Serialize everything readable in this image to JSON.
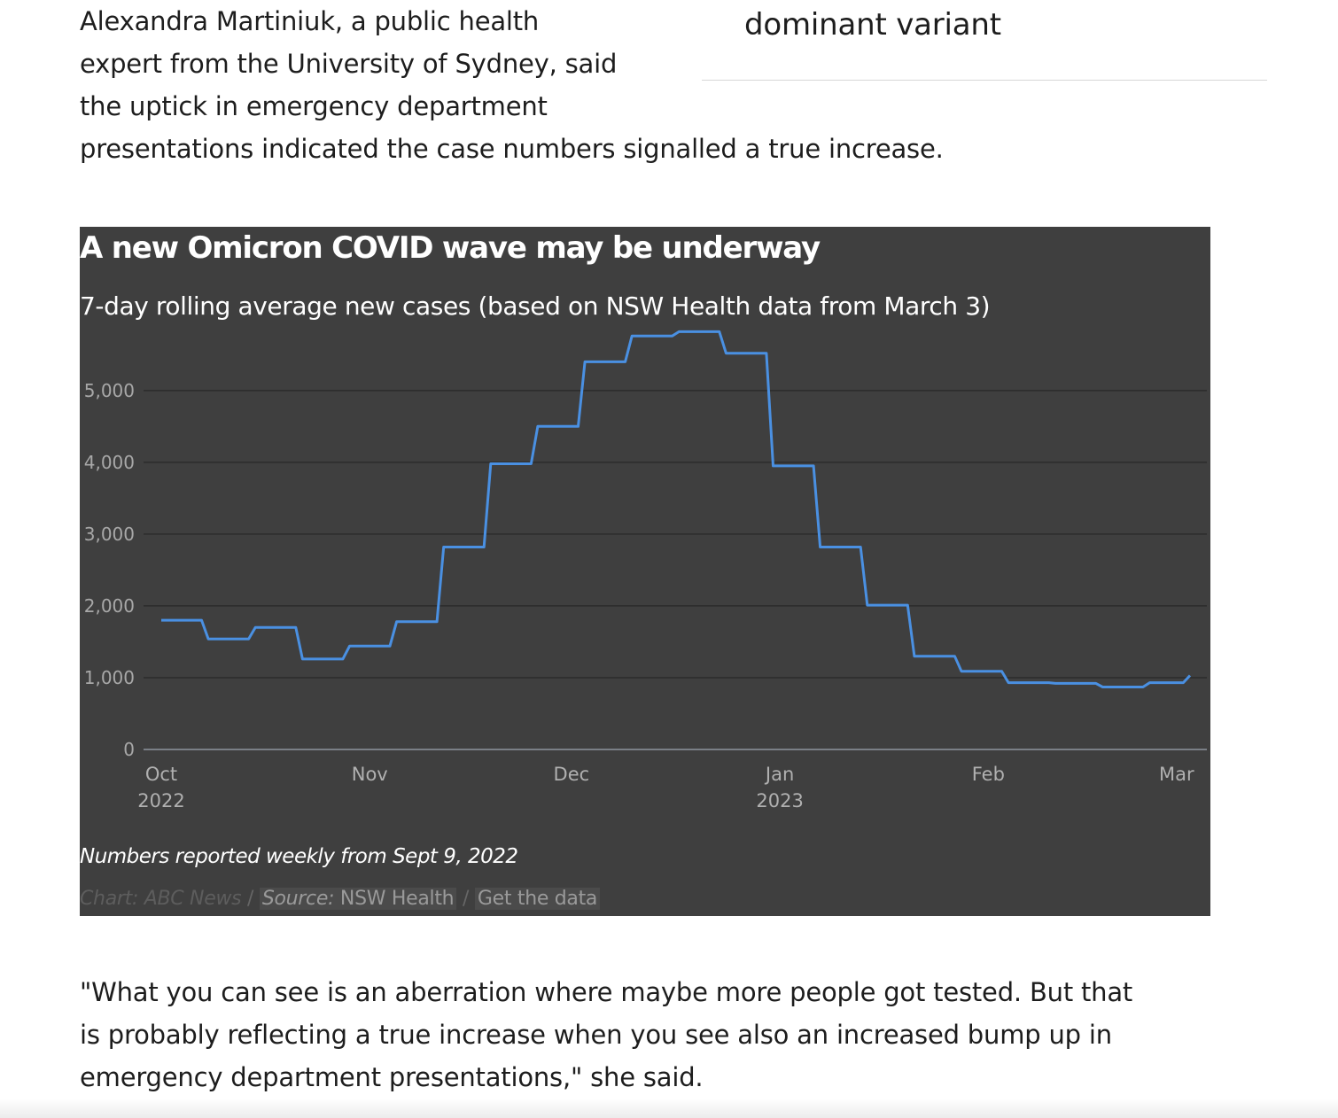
{
  "article": {
    "para_top_lines": [
      "Alexandra Martiniuk, a public health",
      "expert from the University of Sydney, said",
      "the uptick in emergency department",
      "presentations indicated the case numbers signalled a true increase."
    ],
    "pullquote": "dominant variant",
    "para_bottom_lines": [
      "\"What you can see is an aberration where maybe more people got tested. But that",
      "is probably reflecting a true increase when you see also an increased bump up in",
      "emergency department presentations,\" she said."
    ]
  },
  "chart": {
    "note": "Numbers reported weekly from Sept 9, 2022",
    "credit_chart": "Chart: ABC News",
    "credit_sep": "/",
    "source_label": "Source:",
    "source_value": "NSW Health",
    "get_data": "Get the data"
  },
  "colors": {
    "background": "#3f3f3f",
    "line": "#4a90e2",
    "grid": "#2c2c2c",
    "axis": "#7a7f86"
  },
  "chart_data": {
    "type": "line",
    "title": "A new Omicron COVID wave may be underway",
    "subtitle": "7-day rolling average new cases (based on NSW Health data from March 3)",
    "ylim": [
      0,
      5800
    ],
    "y_ticks": [
      0,
      1000,
      2000,
      3000,
      4000,
      5000
    ],
    "y_tick_labels": [
      "0",
      "1,000",
      "2,000",
      "3,000",
      "4,000",
      "5,000"
    ],
    "x_ticks": [
      {
        "date": "2022-10-01",
        "line1": "Oct",
        "line2": "2022"
      },
      {
        "date": "2022-11-01",
        "line1": "Nov",
        "line2": ""
      },
      {
        "date": "2022-12-01",
        "line1": "Dec",
        "line2": ""
      },
      {
        "date": "2023-01-01",
        "line1": "Jan",
        "line2": "2023"
      },
      {
        "date": "2023-02-01",
        "line1": "Feb",
        "line2": ""
      },
      {
        "date": "2023-03-01",
        "line1": "Mar",
        "line2": ""
      }
    ],
    "xlim": [
      "2022-10-01",
      "2023-03-03"
    ],
    "grid": true,
    "series": [
      {
        "values": [
          [
            "2022-10-01",
            1800
          ],
          [
            "2022-10-07",
            1800
          ],
          [
            "2022-10-08",
            1540
          ],
          [
            "2022-10-14",
            1540
          ],
          [
            "2022-10-15",
            1700
          ],
          [
            "2022-10-21",
            1700
          ],
          [
            "2022-10-22",
            1260
          ],
          [
            "2022-10-28",
            1260
          ],
          [
            "2022-10-29",
            1440
          ],
          [
            "2022-11-04",
            1440
          ],
          [
            "2022-11-05",
            1780
          ],
          [
            "2022-11-11",
            1780
          ],
          [
            "2022-11-12",
            2820
          ],
          [
            "2022-11-18",
            2820
          ],
          [
            "2022-11-19",
            3980
          ],
          [
            "2022-11-25",
            3980
          ],
          [
            "2022-11-26",
            4500
          ],
          [
            "2022-12-02",
            4500
          ],
          [
            "2022-12-03",
            5400
          ],
          [
            "2022-12-09",
            5400
          ],
          [
            "2022-12-10",
            5760
          ],
          [
            "2022-12-16",
            5760
          ],
          [
            "2022-12-17",
            5820
          ],
          [
            "2022-12-23",
            5820
          ],
          [
            "2022-12-24",
            5520
          ],
          [
            "2022-12-30",
            5520
          ],
          [
            "2022-12-31",
            3950
          ],
          [
            "2023-01-06",
            3950
          ],
          [
            "2023-01-07",
            2820
          ],
          [
            "2023-01-13",
            2820
          ],
          [
            "2023-01-14",
            2010
          ],
          [
            "2023-01-20",
            2010
          ],
          [
            "2023-01-21",
            1300
          ],
          [
            "2023-01-27",
            1300
          ],
          [
            "2023-01-28",
            1090
          ],
          [
            "2023-02-03",
            1090
          ],
          [
            "2023-02-04",
            930
          ],
          [
            "2023-02-10",
            930
          ],
          [
            "2023-02-11",
            920
          ],
          [
            "2023-02-17",
            920
          ],
          [
            "2023-02-18",
            870
          ],
          [
            "2023-02-24",
            870
          ],
          [
            "2023-02-25",
            930
          ],
          [
            "2023-03-02",
            930
          ],
          [
            "2023-03-03",
            1030
          ]
        ]
      }
    ]
  }
}
